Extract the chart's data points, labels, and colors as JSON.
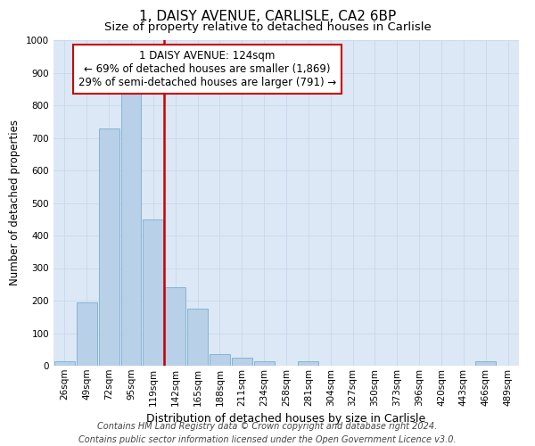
{
  "title1": "1, DAISY AVENUE, CARLISLE, CA2 6BP",
  "title2": "Size of property relative to detached houses in Carlisle",
  "xlabel": "Distribution of detached houses by size in Carlisle",
  "ylabel": "Number of detached properties",
  "bar_labels": [
    "26sqm",
    "49sqm",
    "72sqm",
    "95sqm",
    "119sqm",
    "142sqm",
    "165sqm",
    "188sqm",
    "211sqm",
    "234sqm",
    "258sqm",
    "281sqm",
    "304sqm",
    "327sqm",
    "350sqm",
    "373sqm",
    "396sqm",
    "420sqm",
    "443sqm",
    "466sqm",
    "489sqm"
  ],
  "bar_values": [
    15,
    195,
    730,
    835,
    450,
    240,
    175,
    35,
    25,
    15,
    0,
    15,
    0,
    0,
    0,
    0,
    0,
    0,
    0,
    15,
    0
  ],
  "bar_color": "#b8d0e8",
  "bar_edge_color": "#7aaed0",
  "vline_color": "#cc0000",
  "vline_pos": 4.5,
  "annotation_text": "1 DAISY AVENUE: 124sqm\n← 69% of detached houses are smaller (1,869)\n29% of semi-detached houses are larger (791) →",
  "annotation_box_color": "#ffffff",
  "annotation_box_edge": "#cc0000",
  "ylim": [
    0,
    1000
  ],
  "yticks": [
    0,
    100,
    200,
    300,
    400,
    500,
    600,
    700,
    800,
    900,
    1000
  ],
  "grid_color": "#c8d8ec",
  "bg_color": "#dce8f5",
  "footer": "Contains HM Land Registry data © Crown copyright and database right 2024.\nContains public sector information licensed under the Open Government Licence v3.0.",
  "title1_fontsize": 11,
  "title2_fontsize": 9.5,
  "xlabel_fontsize": 9,
  "ylabel_fontsize": 8.5,
  "tick_fontsize": 7.5,
  "footer_fontsize": 7,
  "annot_fontsize": 8.5
}
